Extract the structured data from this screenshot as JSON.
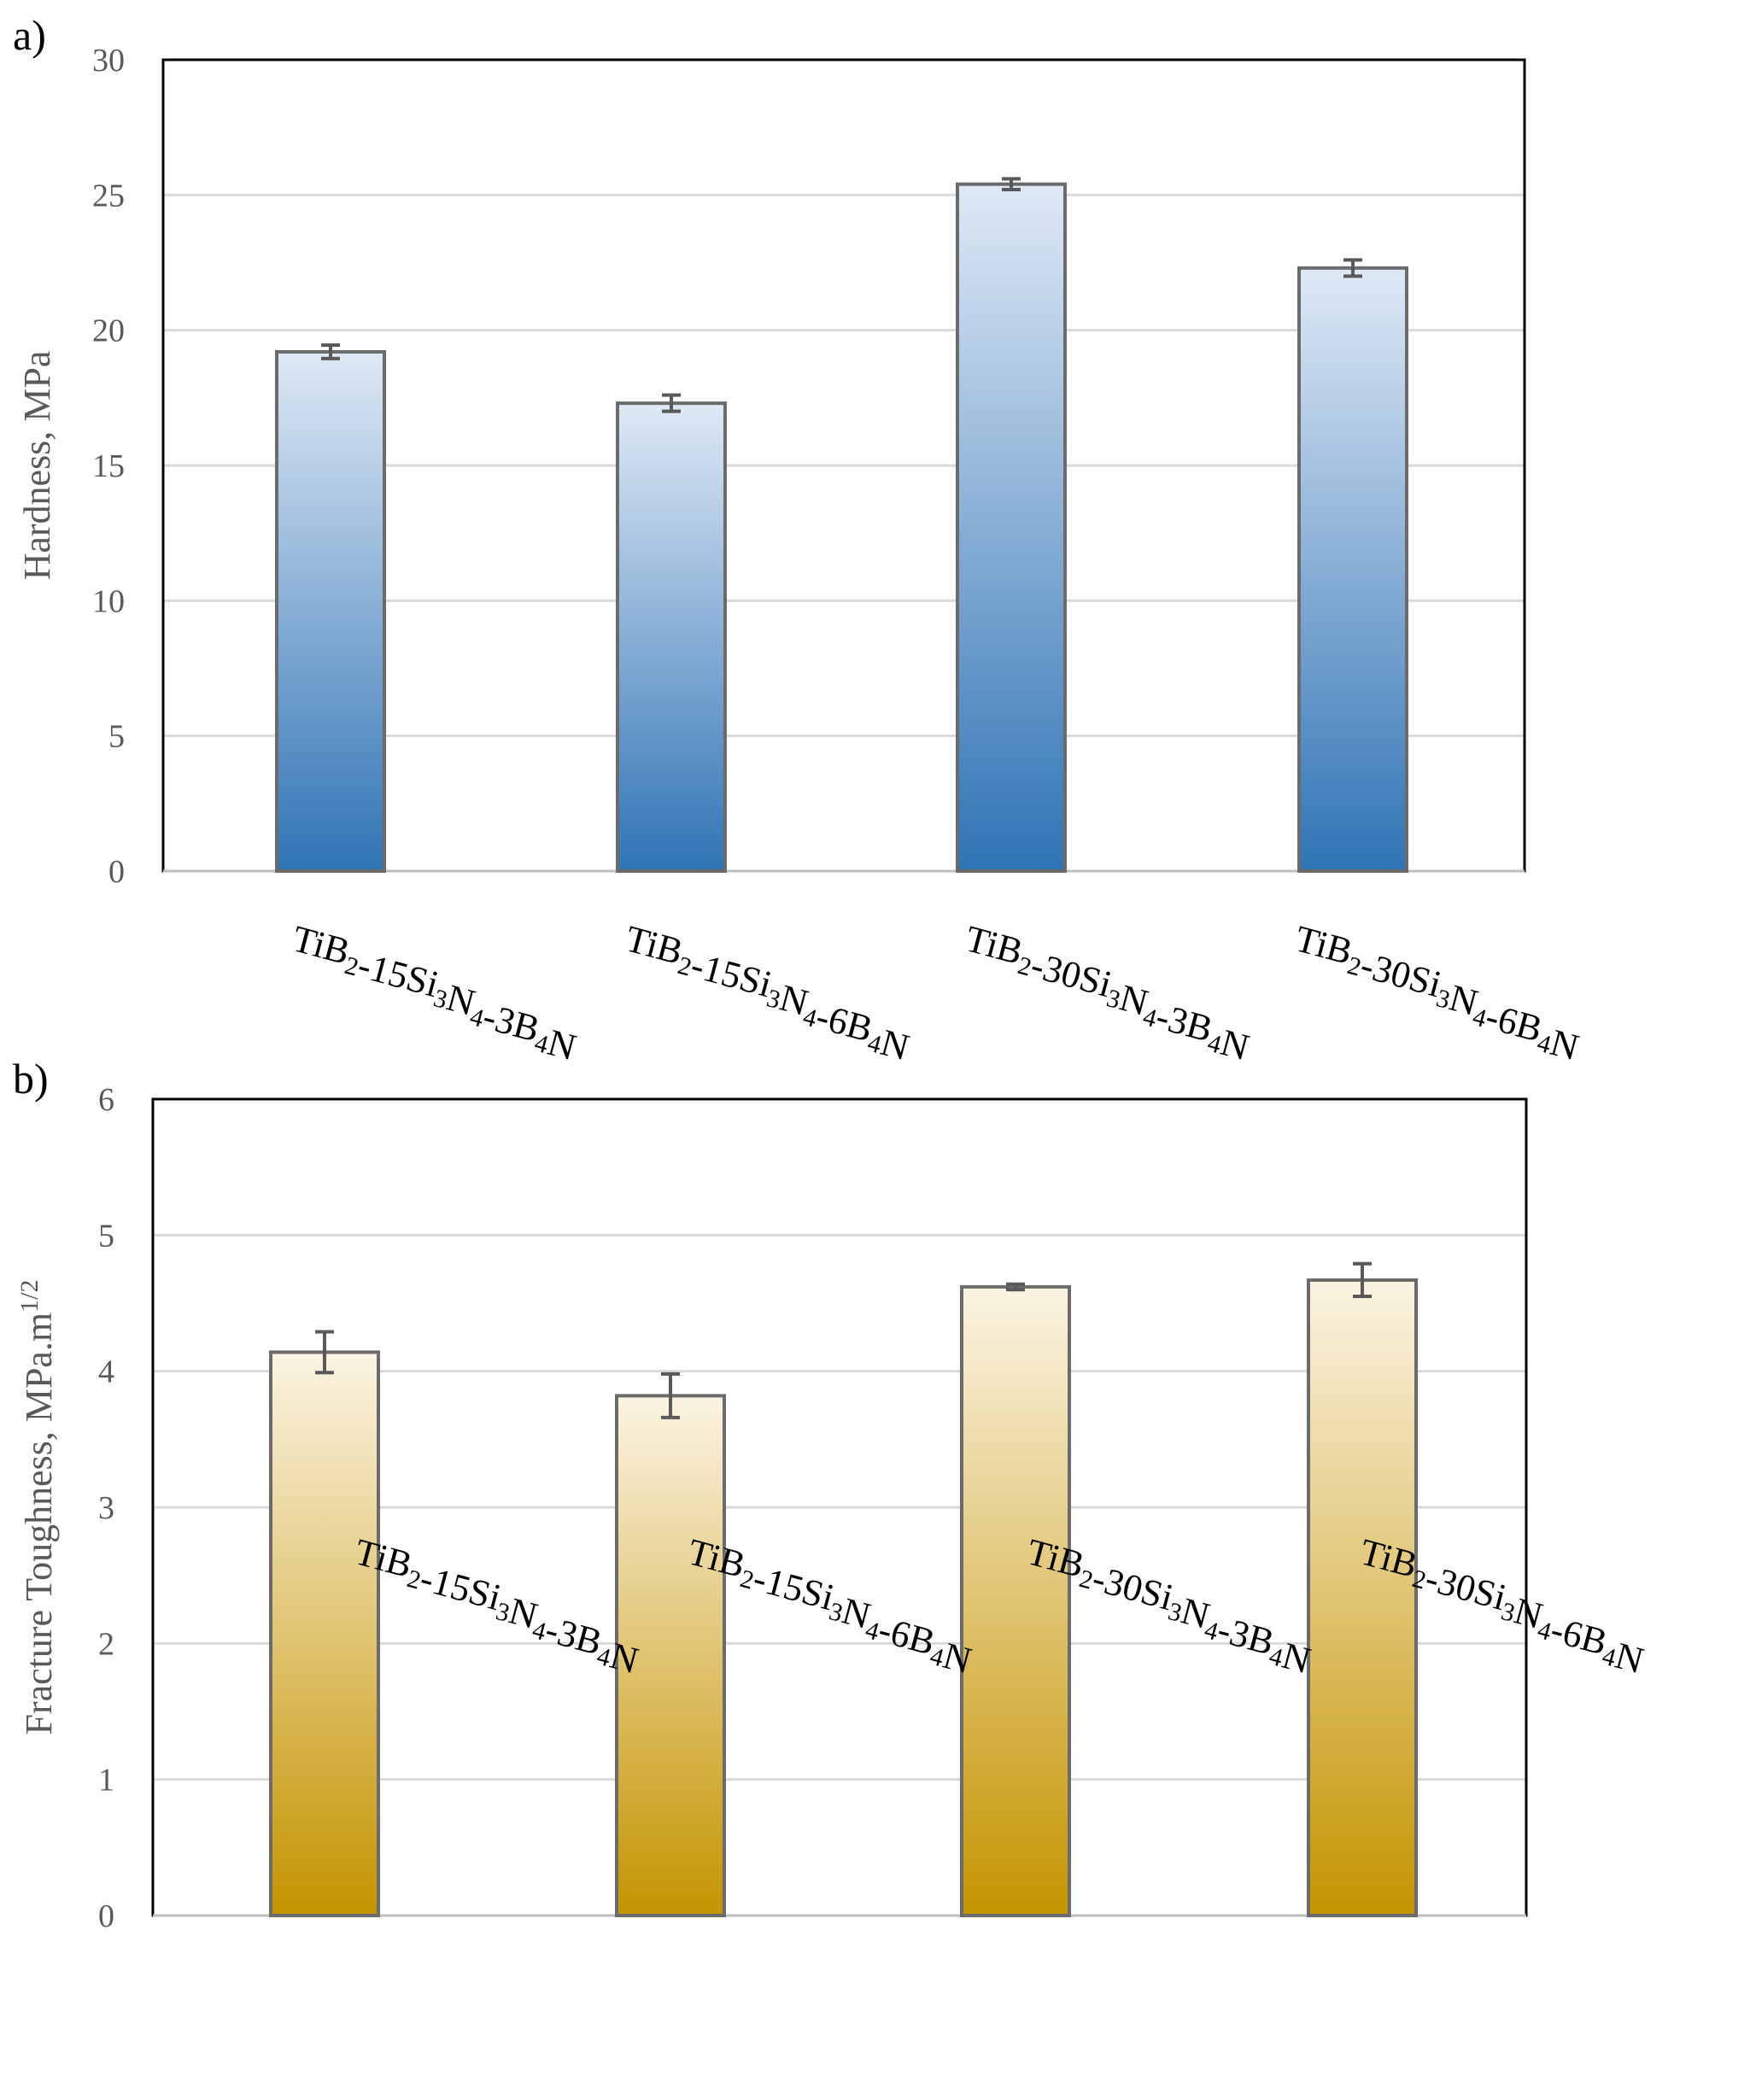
{
  "chart_data": [
    {
      "type": "bar",
      "panel_label": "a)",
      "categories": [
        {
          "base": "TiB",
          "parts": [
            {
              "t": "TiB"
            },
            {
              "t": "2",
              "s": "sub"
            },
            {
              "t": "-15Si"
            },
            {
              "t": "3",
              "s": "sub"
            },
            {
              "t": "N"
            },
            {
              "t": "4",
              "s": "sub"
            },
            {
              "t": "-3B"
            },
            {
              "t": "4",
              "s": "sub"
            },
            {
              "t": "N"
            }
          ],
          "plain": "TiB2-15Si3N4-3B4N"
        },
        {
          "base": "TiB",
          "parts": [
            {
              "t": "TiB"
            },
            {
              "t": "2",
              "s": "sub"
            },
            {
              "t": "-15Si"
            },
            {
              "t": "3",
              "s": "sub"
            },
            {
              "t": "N"
            },
            {
              "t": "4",
              "s": "sub"
            },
            {
              "t": "-6B"
            },
            {
              "t": "4",
              "s": "sub"
            },
            {
              "t": "N"
            }
          ],
          "plain": "TiB2-15Si3N4-6B4N"
        },
        {
          "base": "TiB",
          "parts": [
            {
              "t": "TiB"
            },
            {
              "t": "2",
              "s": "sub"
            },
            {
              "t": "-30Si"
            },
            {
              "t": "3",
              "s": "sub"
            },
            {
              "t": "N"
            },
            {
              "t": "4",
              "s": "sub"
            },
            {
              "t": "-3B"
            },
            {
              "t": "4",
              "s": "sub"
            },
            {
              "t": "N"
            }
          ],
          "plain": "TiB2-30Si3N4-3B4N"
        },
        {
          "base": "TiB",
          "parts": [
            {
              "t": "TiB"
            },
            {
              "t": "2",
              "s": "sub"
            },
            {
              "t": "-30Si"
            },
            {
              "t": "3",
              "s": "sub"
            },
            {
              "t": "N"
            },
            {
              "t": "4",
              "s": "sub"
            },
            {
              "t": "-6B"
            },
            {
              "t": "4",
              "s": "sub"
            },
            {
              "t": "N"
            }
          ],
          "plain": "TiB2-30Si3N4-6B4N"
        }
      ],
      "values": [
        19.2,
        17.3,
        25.4,
        22.3
      ],
      "errors": [
        0.25,
        0.3,
        0.2,
        0.3
      ],
      "ylabel": "Hardness, MPa",
      "ylim": [
        0,
        30
      ],
      "yticks": [
        0,
        5,
        10,
        15,
        20,
        25,
        30
      ],
      "grid": true,
      "colors": {
        "bar_top": "#dfe9f5",
        "bar_bottom": "#2f74b5",
        "bar_edge": "#6b6b6b",
        "grid": "#d9d9d9",
        "text": "#595959",
        "frame": "#000000"
      }
    },
    {
      "type": "bar",
      "panel_label": "b)",
      "categories": [
        {
          "parts": [
            {
              "t": "TiB"
            },
            {
              "t": "2",
              "s": "sub"
            },
            {
              "t": "-15Si"
            },
            {
              "t": "3",
              "s": "sub"
            },
            {
              "t": "N"
            },
            {
              "t": "4",
              "s": "sub"
            },
            {
              "t": "-3B"
            },
            {
              "t": "4",
              "s": "sub"
            },
            {
              "t": "N"
            }
          ],
          "plain": "TiB2-15Si3N4-3B4N"
        },
        {
          "parts": [
            {
              "t": "TiB"
            },
            {
              "t": "2",
              "s": "sub"
            },
            {
              "t": "-15Si"
            },
            {
              "t": "3",
              "s": "sub"
            },
            {
              "t": "N"
            },
            {
              "t": "4",
              "s": "sub"
            },
            {
              "t": "-6B"
            },
            {
              "t": "4",
              "s": "sub"
            },
            {
              "t": "N"
            }
          ],
          "plain": "TiB2-15Si3N4-6B4N"
        },
        {
          "parts": [
            {
              "t": "TiB"
            },
            {
              "t": "2",
              "s": "sub"
            },
            {
              "t": "-30Si"
            },
            {
              "t": "3",
              "s": "sub"
            },
            {
              "t": "N"
            },
            {
              "t": "4",
              "s": "sub"
            },
            {
              "t": "-3B"
            },
            {
              "t": "4",
              "s": "sub"
            },
            {
              "t": "N"
            }
          ],
          "plain": "TiB2-30Si3N4-3B4N"
        },
        {
          "parts": [
            {
              "t": "TiB"
            },
            {
              "t": "2",
              "s": "sub"
            },
            {
              "t": "-30Si"
            },
            {
              "t": "3",
              "s": "sub"
            },
            {
              "t": "N"
            },
            {
              "t": "4",
              "s": "sub"
            },
            {
              "t": "-6B"
            },
            {
              "t": "4",
              "s": "sub"
            },
            {
              "t": "N"
            }
          ],
          "plain": "TiB2-30Si3N4-6B4N"
        }
      ],
      "values": [
        4.14,
        3.82,
        4.62,
        4.67
      ],
      "errors": [
        0.15,
        0.16,
        0.02,
        0.12
      ],
      "ylabel": "Fracture Toughness, MPa.m",
      "ylabel_sup": "1/2",
      "ylim": [
        0,
        6
      ],
      "yticks": [
        0,
        1,
        2,
        3,
        4,
        5,
        6
      ],
      "grid": true,
      "colors": {
        "bar_top": "#fbf4e3",
        "bar_bottom": "#c49400",
        "bar_edge": "#6b6b6b",
        "grid": "#d9d9d9",
        "text": "#595959",
        "frame": "#000000"
      }
    }
  ]
}
